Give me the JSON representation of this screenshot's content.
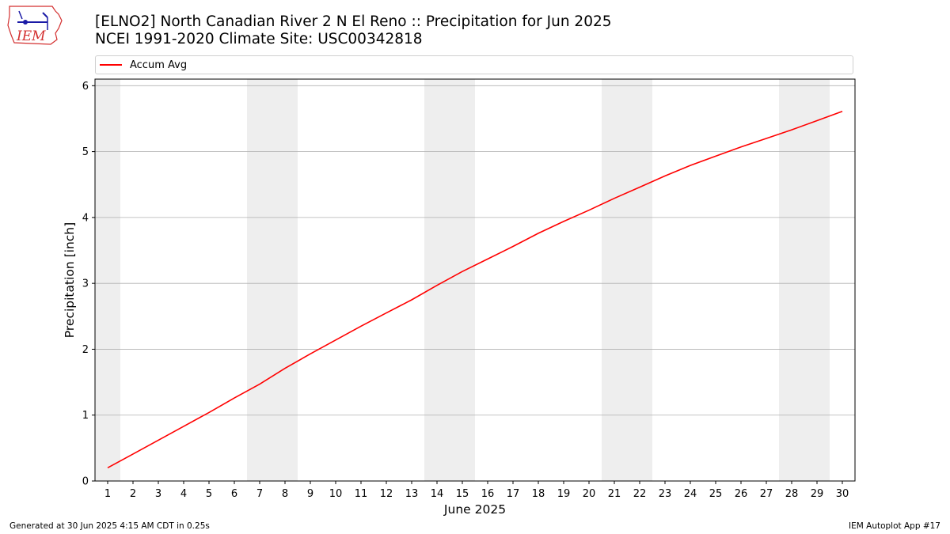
{
  "header": {
    "logo_text": "IEM",
    "title_line1": "[ELNO2] North Canadian River 2 N El Reno :: Precipitation for Jun 2025",
    "title_line2": "NCEI 1991-2020 Climate Site: USC00342818"
  },
  "legend": {
    "label": "Accum Avg",
    "placement": "top, above plot",
    "color": "#ff0000"
  },
  "footer": {
    "generated": "Generated at 30 Jun 2025 4:15 AM CDT in 0.25s",
    "app": "IEM Autoplot App #17"
  },
  "colors": {
    "line": "#ff0000",
    "weekend_shade": "#eeeeee",
    "grid": "#b0b0b0",
    "logo_red": "#d32f2f",
    "logo_blue": "#1a1aa6"
  },
  "chart_data": {
    "type": "line",
    "title": "[ELNO2] North Canadian River 2 N El Reno :: Precipitation for Jun 2025",
    "subtitle": "NCEI 1991-2020 Climate Site: USC00342818",
    "xlabel": "June 2025",
    "ylabel": "Precipitation [inch]",
    "x": [
      1,
      2,
      3,
      4,
      5,
      6,
      7,
      8,
      9,
      10,
      11,
      12,
      13,
      14,
      15,
      16,
      17,
      18,
      19,
      20,
      21,
      22,
      23,
      24,
      25,
      26,
      27,
      28,
      29,
      30
    ],
    "xlim": [
      0.5,
      30.5
    ],
    "ylim": [
      0,
      6.1
    ],
    "yticks": [
      0,
      1,
      2,
      3,
      4,
      5,
      6
    ],
    "grid": "horizontal",
    "shaded_days": [
      1,
      7,
      8,
      14,
      15,
      21,
      22,
      28,
      29
    ],
    "series": [
      {
        "name": "Accum Avg",
        "color": "#ff0000",
        "values": [
          0.2,
          0.41,
          0.62,
          0.83,
          1.04,
          1.26,
          1.47,
          1.71,
          1.93,
          2.14,
          2.35,
          2.55,
          2.75,
          2.97,
          3.18,
          3.37,
          3.56,
          3.76,
          3.94,
          4.11,
          4.29,
          4.46,
          4.63,
          4.79,
          4.93,
          5.07,
          5.2,
          5.33,
          5.47,
          5.61
        ]
      }
    ]
  }
}
